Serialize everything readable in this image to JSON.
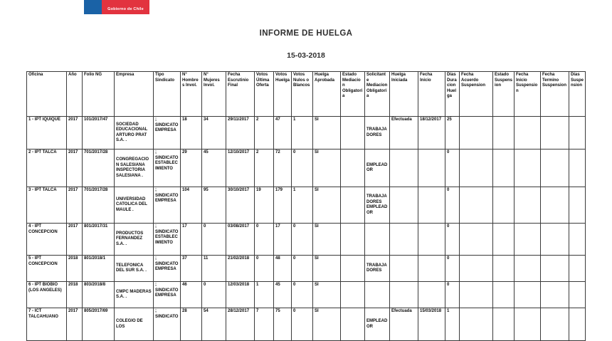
{
  "logo": {
    "text": "Gobierno de Chile",
    "blue_color": "#1a62a6",
    "red_color": "#e2333f"
  },
  "title": "INFORME DE HUELGA",
  "date": "15-03-2018",
  "table": {
    "columns": [
      "Oficina",
      "Año",
      "Folio NG",
      "Empresa",
      "Tipo Sindicato",
      "N° Hombres Invol.",
      "N° Mujeres Invol.",
      "Fecha Escrutinio Final",
      "Votos Última Oferta",
      "Votos Huelga",
      "Votos Nulos o Blancos",
      "Huelga Aprobada",
      "Estado Mediacion Obligatoria",
      "Solicitante Mediacion Obligatoria",
      "Huelga Iniciada",
      "Fecha Inicio",
      "Días Duracion Huelga",
      "Fecha Acuerdo Suspension",
      "Estado Suspension",
      "Fecha Inicio Suspension",
      "Fecha Termino Suspension",
      "Días Suspension"
    ],
    "rows": [
      [
        "1 - IPT IQUIQUE",
        "2017",
        "101/2017/47",
        "SOCIEDAD EDUCACIONAL ARTURO PRAT S.A. .",
        "; SINDICATO EMPRESA",
        "18",
        "34",
        "29/11/2017",
        "2",
        "47",
        "1",
        "SI",
        "",
        "TRABAJADORES",
        "Efectuada",
        "18/12/2017",
        "25",
        "",
        "",
        "",
        "",
        ""
      ],
      [
        "2 - IPT TALCA",
        "2017",
        "701/2017/28",
        "CONGREGACION SALESIANA INSPECTORIA SALESIANA .",
        "; SINDICATO ESTABLECIMIENTO",
        "29",
        "45",
        "12/10/2017",
        "2",
        "72",
        "0",
        "SI",
        "",
        "EMPLEADOR",
        "",
        "",
        "0",
        "",
        "",
        "",
        "",
        ""
      ],
      [
        "3 - IPT TALCA",
        "2017",
        "701/2017/28",
        "UNIVERSIDAD CATOLICA DEL MAULE .",
        "; SINDICATO EMPRESA",
        "104",
        "95",
        "30/10/2017",
        "19",
        "179",
        "1",
        "SI",
        "",
        "TRABAJADORES EMPLEADOR",
        "",
        "",
        "0",
        "",
        "",
        "",
        "",
        ""
      ],
      [
        "4 - IPT CONCEPCION",
        "2017",
        "801/2017/31",
        "PRODUCTOS FERNANDEZ S.A. .",
        "; SINDICATO ESTABLECIMIENTO",
        "17",
        "0",
        "03/08/2017",
        "0",
        "17",
        "0",
        "SI",
        "",
        "",
        "",
        "",
        "0",
        "",
        "",
        "",
        "",
        ""
      ],
      [
        "5 - IPT CONCEPCION",
        "2018",
        "801/2018/1",
        "TELEFONICA DEL SUR S.A. .",
        "; SINDICATO EMPRESA",
        "37",
        "11",
        "21/02/2018",
        "0",
        "48",
        "0",
        "SI",
        "",
        "TRABAJADORES",
        "",
        "",
        "0",
        "",
        "",
        "",
        "",
        ""
      ],
      [
        "6 - IPT BIOBIO (LOS ANGELES)",
        "2018",
        "803/2018/8",
        "CMPC MADERAS S.A. .",
        "; SINDICATO EMPRESA",
        "46",
        "0",
        "12/03/2018",
        "1",
        "45",
        "0",
        "SI",
        "",
        "",
        "",
        "",
        "0",
        "",
        "",
        "",
        "",
        ""
      ],
      [
        "7 - ICT TALCAHUANO",
        "2017",
        "805/2017/69",
        "COLEGIO DE LOS",
        "; SINDICATO",
        "28",
        "54",
        "28/12/2017",
        "7",
        "75",
        "0",
        "SI",
        "",
        "EMPLEADOR",
        "Efectuada",
        "15/03/2018",
        "1",
        "",
        "",
        "",
        "",
        ""
      ]
    ]
  }
}
